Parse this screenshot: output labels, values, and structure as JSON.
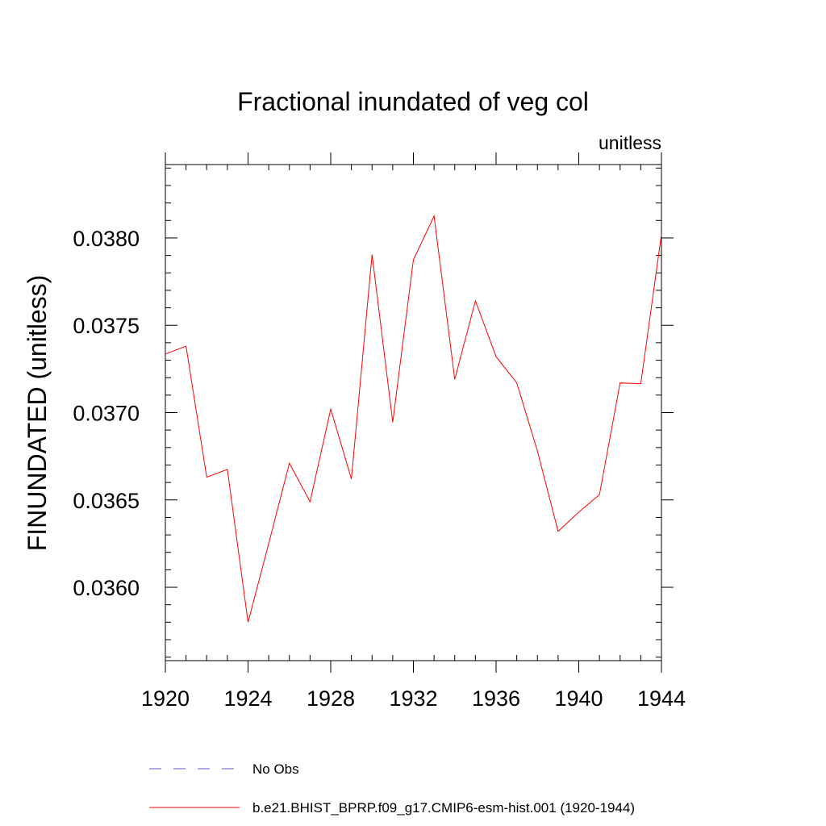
{
  "chart_data": {
    "type": "line",
    "title": "Fractional inundated of veg col",
    "units_label": "unitless",
    "xlabel": "",
    "ylabel": "FINUNDATED  (unitless)",
    "xlim": [
      1920,
      1944
    ],
    "ylim": [
      0.03558,
      0.03842
    ],
    "x_major_ticks": [
      1920,
      1924,
      1928,
      1932,
      1936,
      1940,
      1944
    ],
    "x_tick_labels": [
      "1920",
      "1924",
      "1928",
      "1932",
      "1936",
      "1940",
      "1944"
    ],
    "y_major_ticks": [
      0.036,
      0.0365,
      0.037,
      0.0375,
      0.038
    ],
    "y_tick_labels": [
      "0.0360",
      "0.0365",
      "0.0370",
      "0.0375",
      "0.0380"
    ],
    "y_minor_step": 0.0001,
    "x_minor_step": 1,
    "series": [
      {
        "name": "b.e21.BHIST_BPRP.f09_g17.CMIP6-esm-hist.001 (1920-1944)",
        "color": "#ff0000",
        "style": "solid",
        "x": [
          1920,
          1921,
          1922,
          1923,
          1924,
          1925,
          1926,
          1927,
          1928,
          1929,
          1930,
          1931,
          1932,
          1933,
          1934,
          1935,
          1936,
          1937,
          1938,
          1939,
          1940,
          1941,
          1942,
          1943,
          1944
        ],
        "y": [
          0.037335,
          0.03738,
          0.03663,
          0.036675,
          0.0358,
          0.03625,
          0.03671,
          0.03649,
          0.03702,
          0.03662,
          0.037905,
          0.036945,
          0.037875,
          0.038125,
          0.03719,
          0.03764,
          0.03732,
          0.03717,
          0.03678,
          0.03632,
          0.03643,
          0.03653,
          0.03717,
          0.037165,
          0.03802
        ]
      }
    ],
    "legend": [
      {
        "label": "No Obs",
        "color": "#6a5acd",
        "style": "dashed"
      },
      {
        "label": "b.e21.BHIST_BPRP.f09_g17.CMIP6-esm-hist.001 (1920-1944)",
        "color": "#ff0000",
        "style": "solid"
      }
    ],
    "legend_position": "bottom"
  }
}
